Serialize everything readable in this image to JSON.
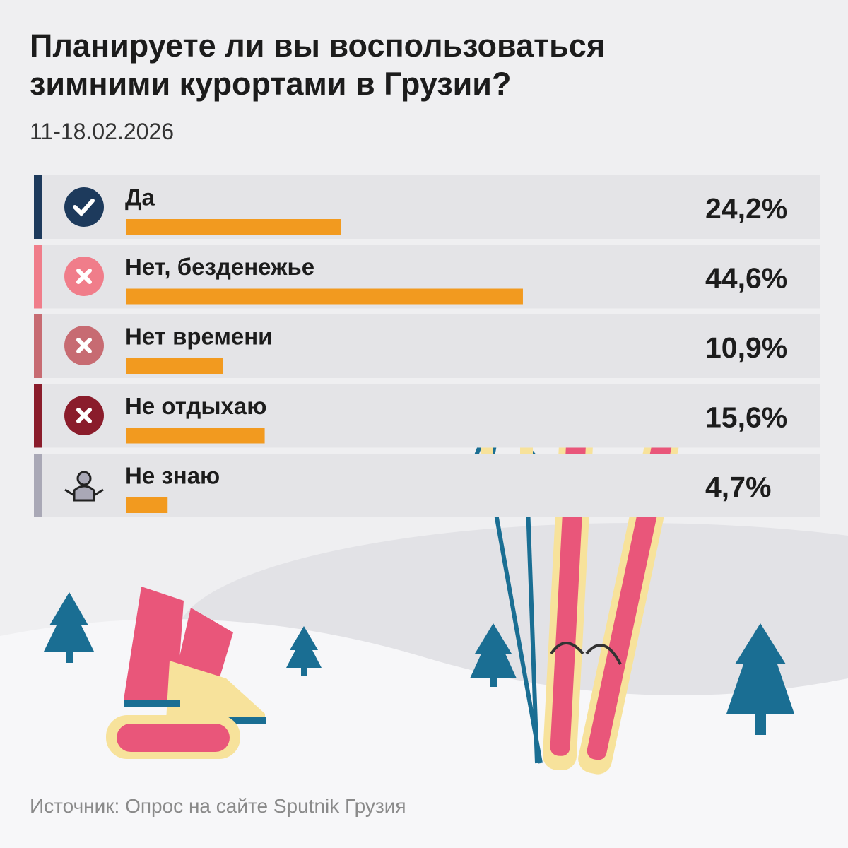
{
  "chart_data": {
    "type": "bar",
    "title": "Планируете ли вы воспользоваться зимними курортами в Грузии?",
    "subtitle": "11-18.02.2026",
    "categories": [
      "Да",
      "Нет, безденежье",
      "Нет времени",
      "Не отдыхаю",
      "Не знаю"
    ],
    "values": [
      24.2,
      44.6,
      10.9,
      15.6,
      4.7
    ],
    "value_labels": [
      "24,2%",
      "44,6%",
      "10,9%",
      "15,6%",
      "4,7%"
    ],
    "color": "#f29a1f",
    "row_colors": [
      "#1d3a5c",
      "#f07d8a",
      "#c76b72",
      "#8a1c2b",
      "#a9a8b6"
    ],
    "source": "Источник: Опрос на сайте Sputnik Грузия"
  }
}
